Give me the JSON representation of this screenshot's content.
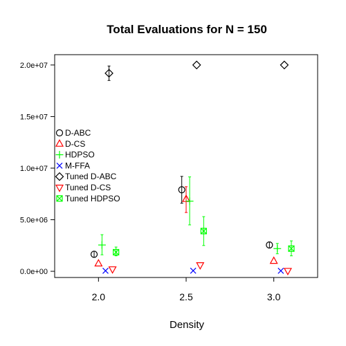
{
  "chart_data": {
    "type": "scatter",
    "title": "Total Evaluations for N = 150",
    "xlabel": "Density",
    "ylabel": "",
    "ylim": [
      -600000,
      21000000
    ],
    "xlim": [
      1.75,
      3.25
    ],
    "x_ticks": [
      2.0,
      2.5,
      3.0
    ],
    "x_tick_labels": [
      "2.0",
      "2.5",
      "3.0"
    ],
    "y_ticks": [
      0,
      5000000,
      10000000,
      15000000,
      20000000
    ],
    "y_tick_labels": [
      "0.0e+00",
      "5.0e+06",
      "1.0e+07",
      "1.5e+07",
      "2.0e+07"
    ],
    "legend_position": "left",
    "series": [
      {
        "name": "D-ABC",
        "marker": "circle",
        "color": "#000000",
        "x_offset": -0.025,
        "points": [
          {
            "x": 2.0,
            "y": 1650000,
            "lo": 1350000,
            "hi": 1950000
          },
          {
            "x": 2.5,
            "y": 7900000,
            "lo": 6600000,
            "hi": 9200000
          },
          {
            "x": 3.0,
            "y": 2550000,
            "lo": 2250000,
            "hi": 2850000
          }
        ]
      },
      {
        "name": "D-CS",
        "marker": "triangle-up",
        "color": "#ff0000",
        "x_offset": 0.0,
        "points": [
          {
            "x": 2.0,
            "y": 750000,
            "lo": 750000,
            "hi": 750000
          },
          {
            "x": 2.5,
            "y": 7000000,
            "lo": 5700000,
            "hi": 8200000
          },
          {
            "x": 3.0,
            "y": 1000000,
            "lo": 1000000,
            "hi": 1000000
          }
        ]
      },
      {
        "name": "HDPSO",
        "marker": "plus",
        "color": "#00ff00",
        "x_offset": 0.02,
        "points": [
          {
            "x": 2.0,
            "y": 2550000,
            "lo": 1600000,
            "hi": 3550000
          },
          {
            "x": 2.5,
            "y": 6800000,
            "lo": 4500000,
            "hi": 9150000
          },
          {
            "x": 3.0,
            "y": 2200000,
            "lo": 1700000,
            "hi": 2700000
          }
        ]
      },
      {
        "name": "M-FFA",
        "marker": "cross",
        "color": "#0000ff",
        "x_offset": 0.04,
        "points": [
          {
            "x": 2.0,
            "y": 50000,
            "lo": 50000,
            "hi": 50000
          },
          {
            "x": 2.5,
            "y": 60000,
            "lo": 60000,
            "hi": 60000
          },
          {
            "x": 3.0,
            "y": 50000,
            "lo": 50000,
            "hi": 50000
          }
        ]
      },
      {
        "name": "Tuned D-ABC",
        "marker": "diamond",
        "color": "#000000",
        "x_offset": 0.06,
        "points": [
          {
            "x": 2.0,
            "y": 19200000,
            "lo": 18500000,
            "hi": 19900000
          },
          {
            "x": 2.5,
            "y": 20000000,
            "lo": 20000000,
            "hi": 20000000
          },
          {
            "x": 3.0,
            "y": 20000000,
            "lo": 20000000,
            "hi": 20000000
          }
        ]
      },
      {
        "name": "Tuned D-CS",
        "marker": "triangle-down",
        "color": "#ff0000",
        "x_offset": 0.08,
        "points": [
          {
            "x": 2.0,
            "y": 200000,
            "lo": 200000,
            "hi": 200000
          },
          {
            "x": 2.5,
            "y": 600000,
            "lo": 600000,
            "hi": 600000
          },
          {
            "x": 3.0,
            "y": 50000,
            "lo": 50000,
            "hi": 50000
          }
        ]
      },
      {
        "name": "Tuned HDPSO",
        "marker": "square-cross",
        "color": "#00ff00",
        "x_offset": 0.1,
        "points": [
          {
            "x": 2.0,
            "y": 1850000,
            "lo": 1500000,
            "hi": 2350000
          },
          {
            "x": 2.5,
            "y": 3900000,
            "lo": 2500000,
            "hi": 5300000
          },
          {
            "x": 3.0,
            "y": 2200000,
            "lo": 1500000,
            "hi": 2950000
          }
        ]
      }
    ]
  }
}
